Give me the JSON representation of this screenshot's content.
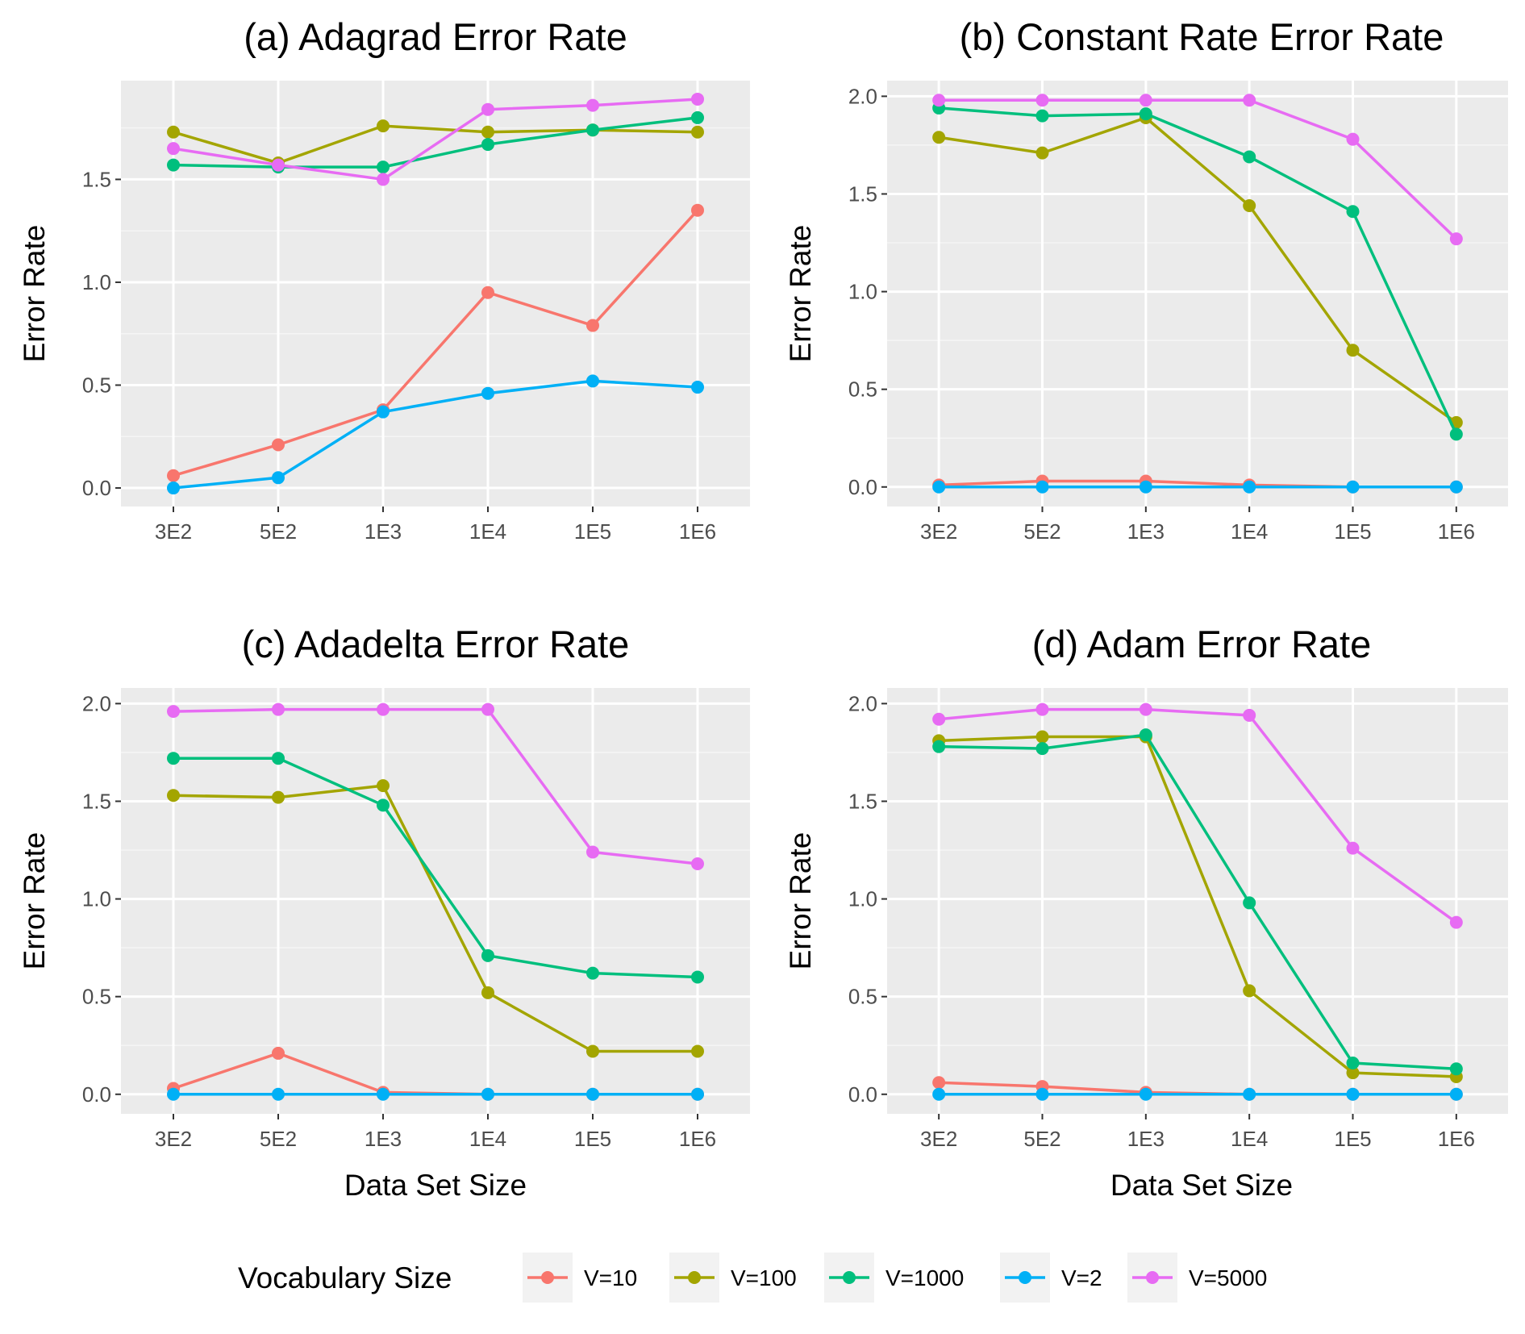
{
  "colors": {
    "panel_bg": "#ebebeb",
    "grid_major": "#ffffff",
    "grid_minor": "#f5f5f5",
    "tick_text": "#4d4d4d",
    "series": {
      "V=10": "#f8766d",
      "V=100": "#a3a500",
      "V=1000": "#00bf7d",
      "V=2": "#00b0f6",
      "V=5000": "#e76bf3"
    }
  },
  "legend": {
    "title": "Vocabulary Size",
    "items": [
      "V=10",
      "V=100",
      "V=1000",
      "V=2",
      "V=5000"
    ]
  },
  "chart_data": [
    {
      "type": "line",
      "title": "(a) Adagrad Error Rate",
      "xlabel": "",
      "ylabel": "Error Rate",
      "categories": [
        "3E2",
        "5E2",
        "1E3",
        "1E4",
        "1E5",
        "1E6"
      ],
      "ylim": [
        -0.09,
        1.98
      ],
      "yticks": [
        "0.0",
        "0.5",
        "1.0",
        "1.5"
      ],
      "grid": true,
      "series": [
        {
          "name": "V=10",
          "values": [
            0.06,
            0.21,
            0.38,
            0.95,
            0.79,
            1.35
          ]
        },
        {
          "name": "V=100",
          "values": [
            1.73,
            1.58,
            1.76,
            1.73,
            1.74,
            1.73
          ]
        },
        {
          "name": "V=1000",
          "values": [
            1.57,
            1.56,
            1.56,
            1.67,
            1.74,
            1.8
          ]
        },
        {
          "name": "V=2",
          "values": [
            0.0,
            0.05,
            0.37,
            0.46,
            0.52,
            0.49
          ]
        },
        {
          "name": "V=5000",
          "values": [
            1.65,
            1.57,
            1.5,
            1.84,
            1.86,
            1.89
          ]
        }
      ]
    },
    {
      "type": "line",
      "title": "(b) Constant Rate Error Rate",
      "xlabel": "",
      "ylabel": "Error Rate",
      "categories": [
        "3E2",
        "5E2",
        "1E3",
        "1E4",
        "1E5",
        "1E6"
      ],
      "ylim": [
        -0.1,
        2.08
      ],
      "yticks": [
        "0.0",
        "0.5",
        "1.0",
        "1.5",
        "2.0"
      ],
      "grid": true,
      "series": [
        {
          "name": "V=10",
          "values": [
            0.01,
            0.03,
            0.03,
            0.01,
            0.0,
            0.0
          ]
        },
        {
          "name": "V=100",
          "values": [
            1.79,
            1.71,
            1.89,
            1.44,
            0.7,
            0.33
          ]
        },
        {
          "name": "V=1000",
          "values": [
            1.94,
            1.9,
            1.91,
            1.69,
            1.41,
            0.27
          ]
        },
        {
          "name": "V=2",
          "values": [
            0.0,
            0.0,
            0.0,
            0.0,
            0.0,
            0.0
          ]
        },
        {
          "name": "V=5000",
          "values": [
            1.98,
            1.98,
            1.98,
            1.98,
            1.78,
            1.27
          ]
        }
      ]
    },
    {
      "type": "line",
      "title": "(c) Adadelta Error Rate",
      "xlabel": "Data Set Size",
      "ylabel": "Error Rate",
      "categories": [
        "3E2",
        "5E2",
        "1E3",
        "1E4",
        "1E5",
        "1E6"
      ],
      "ylim": [
        -0.1,
        2.08
      ],
      "yticks": [
        "0.0",
        "0.5",
        "1.0",
        "1.5",
        "2.0"
      ],
      "grid": true,
      "series": [
        {
          "name": "V=10",
          "values": [
            0.03,
            0.21,
            0.01,
            0.0,
            0.0,
            0.0
          ]
        },
        {
          "name": "V=100",
          "values": [
            1.53,
            1.52,
            1.58,
            0.52,
            0.22,
            0.22
          ]
        },
        {
          "name": "V=1000",
          "values": [
            1.72,
            1.72,
            1.48,
            0.71,
            0.62,
            0.6
          ]
        },
        {
          "name": "V=2",
          "values": [
            0.0,
            0.0,
            0.0,
            0.0,
            0.0,
            0.0
          ]
        },
        {
          "name": "V=5000",
          "values": [
            1.96,
            1.97,
            1.97,
            1.97,
            1.24,
            1.18
          ]
        }
      ]
    },
    {
      "type": "line",
      "title": "(d) Adam Error Rate",
      "xlabel": "Data Set Size",
      "ylabel": "Error Rate",
      "categories": [
        "3E2",
        "5E2",
        "1E3",
        "1E4",
        "1E5",
        "1E6"
      ],
      "ylim": [
        -0.1,
        2.08
      ],
      "yticks": [
        "0.0",
        "0.5",
        "1.0",
        "1.5",
        "2.0"
      ],
      "grid": true,
      "series": [
        {
          "name": "V=10",
          "values": [
            0.06,
            0.04,
            0.01,
            0.0,
            0.0,
            0.0
          ]
        },
        {
          "name": "V=100",
          "values": [
            1.81,
            1.83,
            1.83,
            0.53,
            0.11,
            0.09
          ]
        },
        {
          "name": "V=1000",
          "values": [
            1.78,
            1.77,
            1.84,
            0.98,
            0.16,
            0.13
          ]
        },
        {
          "name": "V=2",
          "values": [
            0.0,
            0.0,
            0.0,
            0.0,
            0.0,
            0.0
          ]
        },
        {
          "name": "V=5000",
          "values": [
            1.92,
            1.97,
            1.97,
            1.94,
            1.26,
            0.88
          ]
        }
      ]
    }
  ]
}
